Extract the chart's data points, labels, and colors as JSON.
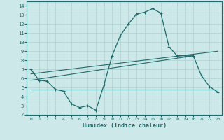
{
  "xlabel": "Humidex (Indice chaleur)",
  "xlim": [
    -0.5,
    23.5
  ],
  "ylim": [
    2,
    14.5
  ],
  "yticks": [
    2,
    3,
    4,
    5,
    6,
    7,
    8,
    9,
    10,
    11,
    12,
    13,
    14
  ],
  "xticks": [
    0,
    1,
    2,
    3,
    4,
    5,
    6,
    7,
    8,
    9,
    10,
    11,
    12,
    13,
    14,
    15,
    16,
    17,
    18,
    19,
    20,
    21,
    22,
    23
  ],
  "bg_color": "#cde8e8",
  "grid_color": "#afd0d0",
  "line_color": "#1a6b6b",
  "line1_x": [
    0,
    1,
    2,
    3,
    4,
    5,
    6,
    7,
    8,
    9,
    10,
    11,
    12,
    13,
    14,
    15,
    16,
    17,
    18,
    19,
    20,
    21,
    22,
    23
  ],
  "line1_y": [
    7.0,
    5.8,
    5.7,
    4.8,
    4.6,
    3.2,
    2.8,
    3.0,
    2.5,
    5.3,
    8.5,
    10.7,
    12.0,
    13.1,
    13.3,
    13.7,
    13.2,
    9.5,
    8.5,
    8.5,
    8.5,
    6.3,
    5.1,
    4.5
  ],
  "line2_x": [
    0,
    23
  ],
  "line2_y": [
    6.5,
    9.0
  ],
  "line3_x": [
    0,
    20
  ],
  "line3_y": [
    5.8,
    8.5
  ],
  "line4_x": [
    0,
    23
  ],
  "line4_y": [
    4.8,
    4.8
  ]
}
